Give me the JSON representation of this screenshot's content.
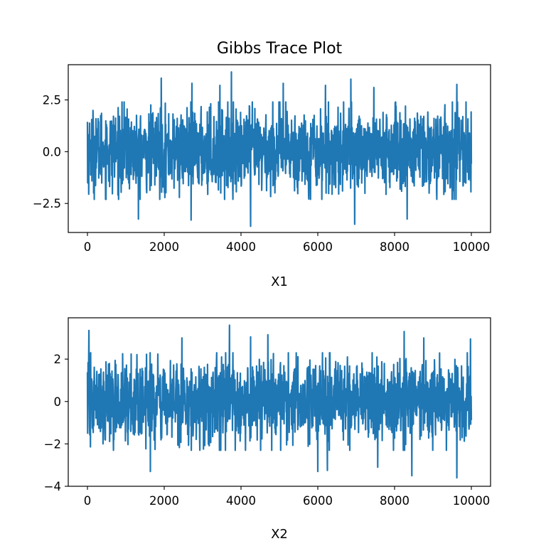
{
  "figure": {
    "title": "Gibbs Trace Plot"
  },
  "colors": {
    "series": "#1f77b4",
    "axes": "#000000",
    "background": "#ffffff"
  },
  "chart_data": [
    {
      "type": "line",
      "title": "Gibbs Trace Plot",
      "xlabel": "X1",
      "ylabel": "",
      "xlim": [
        -500,
        10500
      ],
      "ylim": [
        -3.9,
        4.2
      ],
      "xticks": [
        0,
        2000,
        4000,
        6000,
        8000,
        10000
      ],
      "xtick_labels": [
        "0",
        "2000",
        "4000",
        "6000",
        "8000",
        "10000"
      ],
      "yticks": [
        -2.5,
        0.0,
        2.5
      ],
      "ytick_labels": [
        "−2.5",
        "0.0",
        "2.5"
      ],
      "grid": false,
      "series": [
        {
          "samples": 10000,
          "x_range": [
            0,
            10000
          ],
          "typical_range": [
            -2.3,
            2.4
          ],
          "max": 3.85,
          "min": -3.6,
          "spikes": [
            [
              1920,
              3.55
            ],
            [
              3750,
              3.85
            ],
            [
              6860,
              3.5
            ],
            [
              2720,
              3.3
            ],
            [
              5100,
              3.3
            ],
            [
              9620,
              3.25
            ],
            [
              4250,
              -3.6
            ],
            [
              6960,
              -3.5
            ],
            [
              2700,
              -3.3
            ],
            [
              1330,
              -3.25
            ],
            [
              8330,
              -3.25
            ],
            [
              6200,
              3.2
            ],
            [
              3450,
              3.2
            ],
            [
              7460,
              3.1
            ]
          ]
        }
      ]
    },
    {
      "type": "line",
      "title": "",
      "xlabel": "X2",
      "ylabel": "",
      "xlim": [
        -500,
        10500
      ],
      "ylim": [
        -4.0,
        3.95
      ],
      "xticks": [
        0,
        2000,
        4000,
        6000,
        8000,
        10000
      ],
      "xtick_labels": [
        "0",
        "2000",
        "4000",
        "6000",
        "8000",
        "10000"
      ],
      "yticks": [
        -4,
        -2,
        0,
        2
      ],
      "ytick_labels": [
        "−4",
        "−2",
        "0",
        "2"
      ],
      "grid": false,
      "series": [
        {
          "samples": 10000,
          "x_range": [
            0,
            10000
          ],
          "typical_range": [
            -2.3,
            2.3
          ],
          "max": 3.6,
          "min": -3.6,
          "spikes": [
            [
              3700,
              3.6
            ],
            [
              40,
              3.35
            ],
            [
              8250,
              3.3
            ],
            [
              4700,
              3.15
            ],
            [
              1640,
              -3.3
            ],
            [
              9620,
              -3.6
            ],
            [
              8450,
              -3.5
            ],
            [
              6000,
              -3.3
            ],
            [
              6250,
              -3.25
            ],
            [
              8760,
              3.0
            ],
            [
              2460,
              3.0
            ],
            [
              9980,
              2.95
            ],
            [
              4250,
              3.05
            ],
            [
              7560,
              -3.1
            ]
          ]
        }
      ]
    }
  ]
}
